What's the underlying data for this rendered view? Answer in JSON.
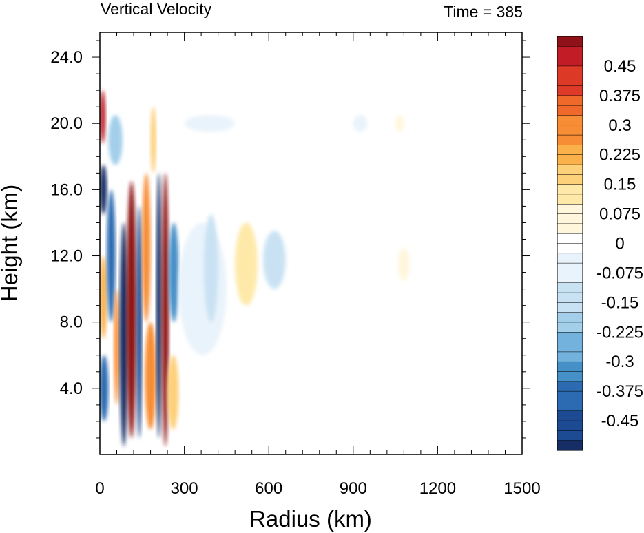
{
  "chart_data": {
    "type": "heatmap",
    "title": "Vertical Velocity",
    "subtitle": "Time = 385",
    "xlabel": "Radius (km)",
    "ylabel": "Height (km)",
    "xlim": [
      0,
      1500
    ],
    "ylim": [
      0,
      25.5
    ],
    "x_ticks": [
      0,
      300,
      600,
      900,
      1200,
      1500
    ],
    "x_tick_labels": [
      "0",
      "300",
      "600",
      "900",
      "1200",
      "1500"
    ],
    "y_ticks": [
      4,
      8,
      12,
      16,
      20,
      24
    ],
    "y_tick_labels": [
      "4.0",
      "8.0",
      "12.0",
      "16.0",
      "20.0",
      "24.0"
    ],
    "colorbar": {
      "min": -0.525,
      "max": 0.525,
      "step": 0.025,
      "labels": [
        {
          "value": 0.45,
          "text": "0.45"
        },
        {
          "value": 0.375,
          "text": "0.375"
        },
        {
          "value": 0.3,
          "text": "0.3"
        },
        {
          "value": 0.225,
          "text": "0.225"
        },
        {
          "value": 0.15,
          "text": "0.15"
        },
        {
          "value": 0.075,
          "text": "0.075"
        },
        {
          "value": 0,
          "text": "0"
        },
        {
          "value": -0.075,
          "text": "-0.075"
        },
        {
          "value": -0.15,
          "text": "-0.15"
        },
        {
          "value": -0.225,
          "text": "-0.225"
        },
        {
          "value": -0.3,
          "text": "-0.3"
        },
        {
          "value": -0.375,
          "text": "-0.375"
        },
        {
          "value": -0.45,
          "text": "-0.45"
        }
      ],
      "colors_positive": [
        "#ffffff",
        "#fff6dc",
        "#fee9a8",
        "#fdd07a",
        "#fbb14a",
        "#f78d35",
        "#ef6a2a",
        "#dd3a28",
        "#c21d27",
        "#8e1217"
      ],
      "colors_negative": [
        "#ffffff",
        "#e9f3fb",
        "#c9e2f3",
        "#a3cfea",
        "#72b2dc",
        "#4690c8",
        "#2c6bb1",
        "#1d4b93",
        "#162d66"
      ]
    },
    "features": [
      {
        "r": [
          0,
          20
        ],
        "z": [
          18.8,
          22.0
        ],
        "w": 0.45
      },
      {
        "r": [
          0,
          25
        ],
        "z": [
          14.5,
          17.5
        ],
        "w": -0.5
      },
      {
        "r": [
          0,
          25
        ],
        "z": [
          7.0,
          12.0
        ],
        "w": 0.25
      },
      {
        "r": [
          0,
          30
        ],
        "z": [
          2.0,
          6.0
        ],
        "w": -0.4
      },
      {
        "r": [
          25,
          55
        ],
        "z": [
          8.0,
          16.0
        ],
        "w": -0.4
      },
      {
        "r": [
          50,
          70
        ],
        "z": [
          3.0,
          10.0
        ],
        "w": 0.3
      },
      {
        "r": [
          70,
          100
        ],
        "z": [
          0.5,
          14.0
        ],
        "w": -0.5
      },
      {
        "r": [
          95,
          130
        ],
        "z": [
          1.0,
          16.5
        ],
        "w": 0.5
      },
      {
        "r": [
          130,
          150
        ],
        "z": [
          1.0,
          15.0
        ],
        "w": -0.45
      },
      {
        "r": [
          150,
          180
        ],
        "z": [
          8.0,
          17.0
        ],
        "w": 0.3
      },
      {
        "r": [
          160,
          200
        ],
        "z": [
          1.5,
          8.0
        ],
        "w": 0.3
      },
      {
        "r": [
          180,
          200
        ],
        "z": [
          17.0,
          21.0
        ],
        "w": 0.2
      },
      {
        "r": [
          200,
          220
        ],
        "z": [
          1.0,
          17.0
        ],
        "w": -0.5
      },
      {
        "r": [
          220,
          245
        ],
        "z": [
          0.5,
          17.0
        ],
        "w": 0.5
      },
      {
        "r": [
          245,
          280
        ],
        "z": [
          8.0,
          14.0
        ],
        "w": -0.35
      },
      {
        "r": [
          240,
          280
        ],
        "z": [
          1.5,
          6.0
        ],
        "w": 0.2
      },
      {
        "r": [
          30,
          80
        ],
        "z": [
          17.5,
          20.5
        ],
        "w": -0.2
      },
      {
        "r": [
          280,
          450
        ],
        "z": [
          6.0,
          14.0
        ],
        "w": -0.075
      },
      {
        "r": [
          370,
          420
        ],
        "z": [
          8.0,
          14.5
        ],
        "w": -0.15
      },
      {
        "r": [
          480,
          560
        ],
        "z": [
          9.0,
          14.0
        ],
        "w": 0.1
      },
      {
        "r": [
          580,
          660
        ],
        "z": [
          10.0,
          13.5
        ],
        "w": -0.1
      },
      {
        "r": [
          900,
          950
        ],
        "z": [
          19.5,
          20.5
        ],
        "w": -0.075
      },
      {
        "r": [
          1050,
          1080
        ],
        "z": [
          19.5,
          20.5
        ],
        "w": 0.075
      },
      {
        "r": [
          1060,
          1100
        ],
        "z": [
          10.5,
          12.5
        ],
        "w": 0.075
      },
      {
        "r": [
          300,
          480
        ],
        "z": [
          19.5,
          20.5
        ],
        "w": -0.075
      }
    ]
  }
}
